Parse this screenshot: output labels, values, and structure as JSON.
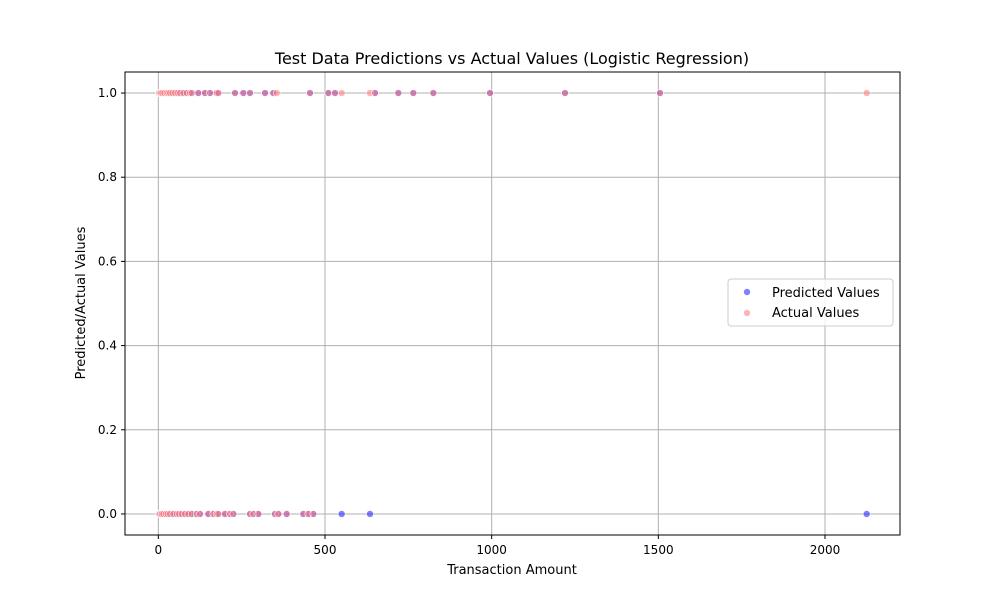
{
  "chart_data": {
    "type": "scatter",
    "title": "Test Data Predictions vs Actual Values (Logistic Regression)",
    "xlabel": "Transaction Amount",
    "ylabel": "Predicted/Actual Values",
    "xlim": [
      -100,
      2225
    ],
    "ylim": [
      -0.05,
      1.05
    ],
    "x_ticks": [
      0,
      500,
      1000,
      1500,
      2000
    ],
    "x_tick_labels": [
      "0",
      "500",
      "1000",
      "1500",
      "2000"
    ],
    "y_ticks": [
      0.0,
      0.2,
      0.4,
      0.6,
      0.8,
      1.0
    ],
    "y_tick_labels": [
      "0.0",
      "0.2",
      "0.4",
      "0.6",
      "0.8",
      "1.0"
    ],
    "grid": true,
    "legend_position": "center-right",
    "series": [
      {
        "name": "Predicted Values",
        "color": "#0000ff",
        "opacity": 0.5,
        "x": [
          2,
          5,
          8,
          12,
          18,
          25,
          30,
          35,
          42,
          50,
          58,
          65,
          75,
          85,
          95,
          100,
          120,
          140,
          155,
          175,
          180,
          230,
          255,
          275,
          320,
          345,
          455,
          510,
          530,
          650,
          720,
          765,
          825,
          995,
          1220,
          1505,
          3,
          6,
          10,
          15,
          22,
          28,
          35,
          45,
          55,
          62,
          70,
          80,
          90,
          100,
          115,
          125,
          150,
          165,
          175,
          180,
          200,
          215,
          225,
          275,
          285,
          300,
          350,
          360,
          385,
          435,
          450,
          465,
          550,
          635,
          2125
        ],
        "y": [
          1,
          1,
          1,
          1,
          1,
          1,
          1,
          1,
          1,
          1,
          1,
          1,
          1,
          1,
          1,
          1,
          1,
          1,
          1,
          1,
          1,
          1,
          1,
          1,
          1,
          1,
          1,
          1,
          1,
          1,
          1,
          1,
          1,
          1,
          1,
          1,
          0,
          0,
          0,
          0,
          0,
          0,
          0,
          0,
          0,
          0,
          0,
          0,
          0,
          0,
          0,
          0,
          0,
          0,
          0,
          0,
          0,
          0,
          0,
          0,
          0,
          0,
          0,
          0,
          0,
          0,
          0,
          0,
          0,
          0,
          0
        ]
      },
      {
        "name": "Actual Values",
        "color": "#ff8080",
        "opacity": 0.6,
        "x": [
          2,
          5,
          8,
          12,
          18,
          25,
          30,
          35,
          42,
          50,
          58,
          65,
          75,
          85,
          95,
          100,
          120,
          140,
          155,
          175,
          180,
          230,
          255,
          275,
          320,
          345,
          355,
          455,
          510,
          530,
          550,
          635,
          650,
          720,
          765,
          825,
          995,
          1220,
          1505,
          2125,
          3,
          6,
          10,
          15,
          22,
          28,
          35,
          45,
          55,
          62,
          70,
          80,
          90,
          100,
          115,
          125,
          150,
          165,
          175,
          180,
          200,
          215,
          225,
          275,
          285,
          300,
          350,
          360,
          385,
          435,
          450,
          465
        ],
        "y": [
          1,
          1,
          1,
          1,
          1,
          1,
          1,
          1,
          1,
          1,
          1,
          1,
          1,
          1,
          1,
          1,
          1,
          1,
          1,
          1,
          1,
          1,
          1,
          1,
          1,
          1,
          1,
          1,
          1,
          1,
          1,
          1,
          1,
          1,
          1,
          1,
          1,
          1,
          1,
          1,
          0,
          0,
          0,
          0,
          0,
          0,
          0,
          0,
          0,
          0,
          0,
          0,
          0,
          0,
          0,
          0,
          0,
          0,
          0,
          0,
          0,
          0,
          0,
          0,
          0,
          0,
          0,
          0,
          0,
          0,
          0,
          0
        ]
      }
    ]
  }
}
